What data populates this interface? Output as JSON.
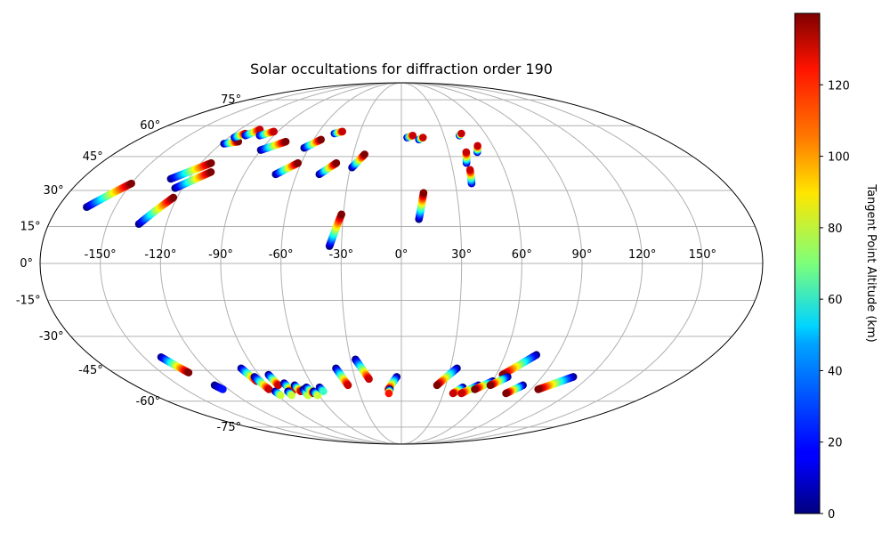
{
  "chart_data": {
    "type": "scatter",
    "projection": "mollweide",
    "title": "Solar occultations for diffraction order 190",
    "x_ticks": [
      "-150°",
      "-120°",
      "-90°",
      "-60°",
      "-30°",
      "0°",
      "30°",
      "60°",
      "90°",
      "120°",
      "150°"
    ],
    "x_tick_values": [
      -150,
      -120,
      -90,
      -60,
      -30,
      0,
      30,
      60,
      90,
      120,
      150
    ],
    "y_ticks": [
      "75°",
      "60°",
      "45°",
      "30°",
      "15°",
      "0°",
      "-15°",
      "-30°",
      "-45°",
      "-60°",
      "-75°"
    ],
    "y_tick_values": [
      75,
      60,
      45,
      30,
      15,
      0,
      -15,
      -30,
      -45,
      -60,
      -75
    ],
    "grid": true,
    "colorbar": {
      "label": "Tangent Point Altitude (km)",
      "ticks": [
        "0",
        "20",
        "40",
        "60",
        "80",
        "100",
        "120"
      ],
      "tick_values": [
        0,
        20,
        40,
        60,
        80,
        100,
        120
      ],
      "range": [
        0,
        140
      ],
      "colormap": "jet"
    },
    "tracks": [
      {
        "start": [
          -165,
          23
        ],
        "end": [
          -150,
          33
        ],
        "alt_start": 0,
        "alt_end": 140
      },
      {
        "start": [
          -134,
          16
        ],
        "end": [
          -122,
          27
        ],
        "alt_start": 0,
        "alt_end": 140
      },
      {
        "start": [
          -130,
          35
        ],
        "end": [
          -114,
          42
        ],
        "alt_start": 0,
        "alt_end": 140
      },
      {
        "start": [
          -124,
          31
        ],
        "end": [
          -110,
          38
        ],
        "alt_start": 0,
        "alt_end": 140
      },
      {
        "start": [
          -118,
          51
        ],
        "end": [
          -110,
          52
        ],
        "alt_start": 0,
        "alt_end": 140
      },
      {
        "start": [
          -116,
          54
        ],
        "end": [
          -112,
          56
        ],
        "alt_start": 10,
        "alt_end": 130
      },
      {
        "start": [
          -110,
          55
        ],
        "end": [
          -105,
          58
        ],
        "alt_start": 10,
        "alt_end": 130
      },
      {
        "start": [
          -100,
          55
        ],
        "end": [
          -93,
          57
        ],
        "alt_start": 10,
        "alt_end": 130
      },
      {
        "start": [
          -90,
          48
        ],
        "end": [
          -78,
          52
        ],
        "alt_start": 0,
        "alt_end": 140
      },
      {
        "start": [
          -72,
          37
        ],
        "end": [
          -62,
          42
        ],
        "alt_start": 0,
        "alt_end": 140
      },
      {
        "start": [
          -63,
          49
        ],
        "end": [
          -55,
          53
        ],
        "alt_start": 0,
        "alt_end": 140
      },
      {
        "start": [
          -48,
          56
        ],
        "end": [
          -43,
          57
        ],
        "alt_start": 10,
        "alt_end": 130
      },
      {
        "start": [
          -47,
          37
        ],
        "end": [
          -39,
          42
        ],
        "alt_start": 0,
        "alt_end": 140
      },
      {
        "start": [
          -36,
          7
        ],
        "end": [
          -31,
          20
        ],
        "alt_start": 0,
        "alt_end": 140
      },
      {
        "start": [
          -29,
          40
        ],
        "end": [
          -23,
          46
        ],
        "alt_start": 0,
        "alt_end": 140
      },
      {
        "start": [
          4,
          54
        ],
        "end": [
          8,
          55
        ],
        "alt_start": 10,
        "alt_end": 130
      },
      {
        "start": [
          12,
          53
        ],
        "end": [
          15,
          54
        ],
        "alt_start": 10,
        "alt_end": 130
      },
      {
        "start": [
          9,
          18
        ],
        "end": [
          12,
          29
        ],
        "alt_start": 0,
        "alt_end": 140
      },
      {
        "start": [
          39,
          33
        ],
        "end": [
          40,
          39
        ],
        "alt_start": 10,
        "alt_end": 130
      },
      {
        "start": [
          39,
          42
        ],
        "end": [
          41,
          47
        ],
        "alt_start": 10,
        "alt_end": 130
      },
      {
        "start": [
          41,
          55
        ],
        "end": [
          43,
          56
        ],
        "alt_start": 10,
        "alt_end": 130
      },
      {
        "start": [
          48,
          47
        ],
        "end": [
          50,
          50
        ],
        "alt_start": 10,
        "alt_end": 130
      },
      {
        "start": [
          -140,
          -39
        ],
        "end": [
          -133,
          -46
        ],
        "alt_start": 0,
        "alt_end": 140
      },
      {
        "start": [
          -126,
          -52
        ],
        "end": [
          -124,
          -54
        ],
        "alt_start": 0,
        "alt_end": 20
      },
      {
        "start": [
          -98,
          -44
        ],
        "end": [
          -95,
          -50
        ],
        "alt_start": 0,
        "alt_end": 130
      },
      {
        "start": [
          -94,
          -48
        ],
        "end": [
          -92,
          -54
        ],
        "alt_start": 0,
        "alt_end": 130
      },
      {
        "start": [
          -89,
          -55
        ],
        "end": [
          -88,
          -57
        ],
        "alt_start": 0,
        "alt_end": 80
      },
      {
        "start": [
          -84,
          -47
        ],
        "end": [
          -83,
          -52
        ],
        "alt_start": 0,
        "alt_end": 130
      },
      {
        "start": [
          -78,
          -51
        ],
        "end": [
          -77,
          -55
        ],
        "alt_start": 0,
        "alt_end": 130
      },
      {
        "start": [
          -80,
          -55
        ],
        "end": [
          -80,
          -57
        ],
        "alt_start": 0,
        "alt_end": 80
      },
      {
        "start": [
          -72,
          -52
        ],
        "end": [
          -71,
          -55
        ],
        "alt_start": 0,
        "alt_end": 130
      },
      {
        "start": [
          -68,
          -54
        ],
        "end": [
          -68,
          -57
        ],
        "alt_start": 0,
        "alt_end": 80
      },
      {
        "start": [
          -65,
          -53
        ],
        "end": [
          -63,
          -56
        ],
        "alt_start": 0,
        "alt_end": 130
      },
      {
        "start": [
          -62,
          -55
        ],
        "end": [
          -61,
          -57
        ],
        "alt_start": 0,
        "alt_end": 80
      },
      {
        "start": [
          -56,
          -53
        ],
        "end": [
          -55,
          -55
        ],
        "alt_start": 0,
        "alt_end": 60
      },
      {
        "start": [
          -40,
          -44
        ],
        "end": [
          -36,
          -52
        ],
        "alt_start": 0,
        "alt_end": 130
      },
      {
        "start": [
          -27,
          -40
        ],
        "end": [
          -21,
          -49
        ],
        "alt_start": 0,
        "alt_end": 130
      },
      {
        "start": [
          -3,
          -48
        ],
        "end": [
          -9,
          -54
        ],
        "alt_start": 0,
        "alt_end": 130
      },
      {
        "start": [
          -8,
          -54
        ],
        "end": [
          -9,
          -56
        ],
        "alt_start": 0,
        "alt_end": 120
      },
      {
        "start": [
          34,
          -44
        ],
        "end": [
          24,
          -52
        ],
        "alt_start": 0,
        "alt_end": 140
      },
      {
        "start": [
          42,
          -53
        ],
        "end": [
          37,
          -56
        ],
        "alt_start": 0,
        "alt_end": 130
      },
      {
        "start": [
          52,
          -52
        ],
        "end": [
          43,
          -56
        ],
        "alt_start": 0,
        "alt_end": 130
      },
      {
        "start": [
          60,
          -50
        ],
        "end": [
          51,
          -54
        ],
        "alt_start": 0,
        "alt_end": 140
      },
      {
        "start": [
          78,
          -38
        ],
        "end": [
          64,
          -47
        ],
        "alt_start": 0,
        "alt_end": 140
      },
      {
        "start": [
          68,
          -48
        ],
        "end": [
          60,
          -52
        ],
        "alt_start": 0,
        "alt_end": 140
      },
      {
        "start": [
          82,
          -52
        ],
        "end": [
          75,
          -56
        ],
        "alt_start": 0,
        "alt_end": 140
      },
      {
        "start": [
          110,
          -48
        ],
        "end": [
          95,
          -54
        ],
        "alt_start": 0,
        "alt_end": 140
      }
    ]
  }
}
